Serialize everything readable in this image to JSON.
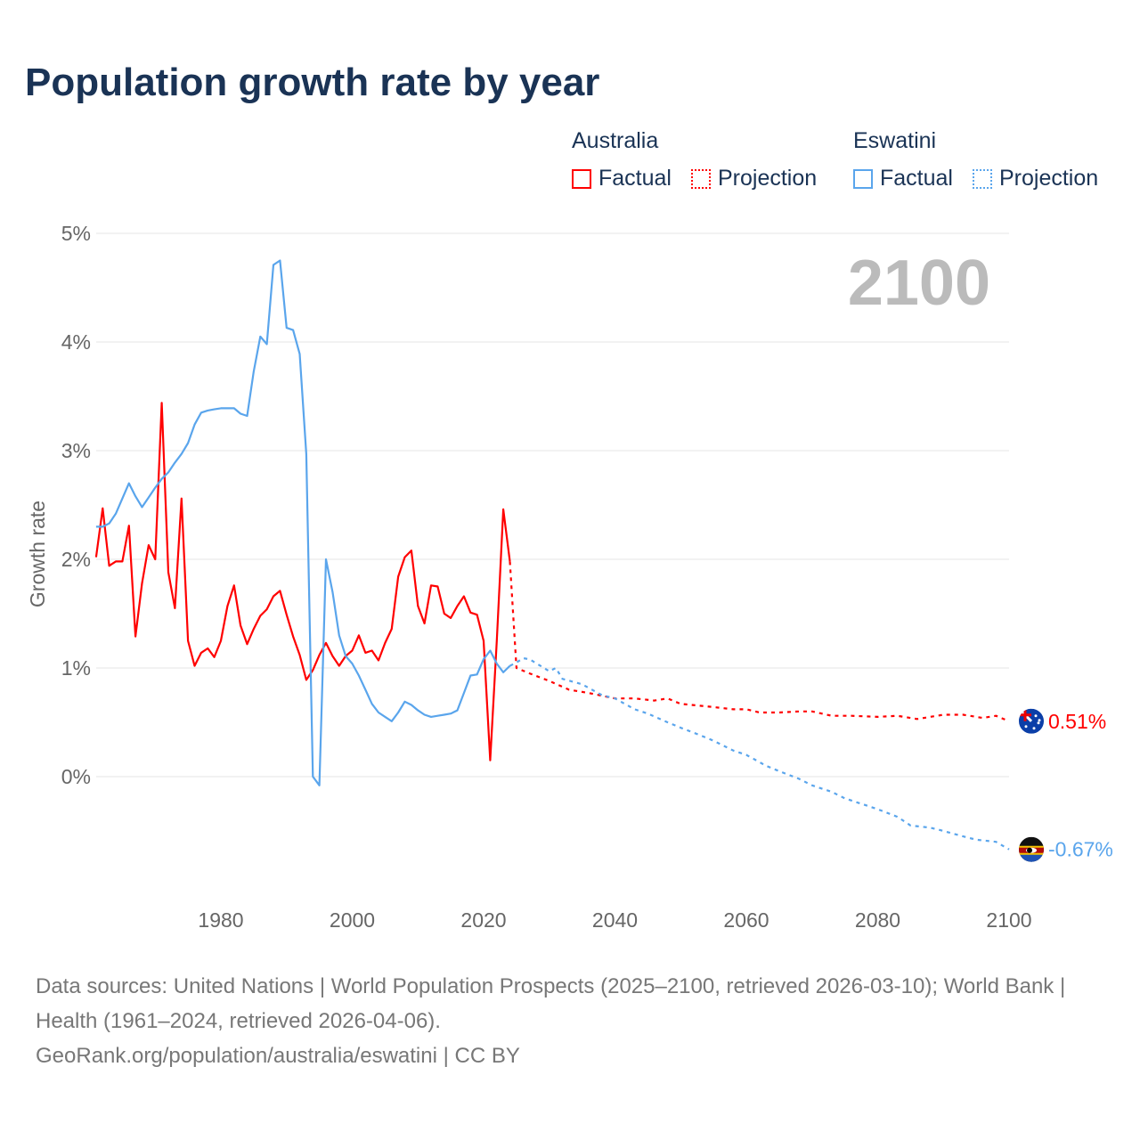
{
  "title": "Population growth rate by year",
  "legend": {
    "groups": [
      {
        "name": "Australia",
        "color": "#ff0000",
        "factual": "Factual",
        "projection": "Projection"
      },
      {
        "name": "Eswatini",
        "color": "#5aa5ec",
        "factual": "Factual",
        "projection": "Projection"
      }
    ]
  },
  "year_label": "2100",
  "source": {
    "line1": "Data sources: United Nations | World Population Prospects (2025–2100, retrieved 2026-03-10); World Bank | Health (1961–2024, retrieved 2026-04-06).",
    "line2": "GeoRank.org/population/australia/eswatini | CC BY"
  },
  "chart_data": {
    "type": "line",
    "title": "Population growth rate by year",
    "xlabel": "",
    "ylabel": "Growth rate",
    "xlim": [
      1961,
      2100
    ],
    "ylim": [
      -1,
      5
    ],
    "xticks": [
      "1980",
      "2000",
      "2020",
      "2040",
      "2060",
      "2080",
      "2100"
    ],
    "yticks": [
      "0%",
      "1%",
      "2%",
      "3%",
      "4%",
      "5%"
    ],
    "grid": true,
    "legend_position": "top-right",
    "series": [
      {
        "name": "Australia Factual",
        "color": "#ff0000",
        "start_year": 1961,
        "values": [
          2.02,
          2.47,
          1.94,
          1.98,
          1.98,
          2.31,
          1.29,
          1.78,
          2.13,
          2.0,
          3.44,
          1.88,
          1.55,
          2.56,
          1.25,
          1.02,
          1.14,
          1.18,
          1.1,
          1.25,
          1.57,
          1.76,
          1.39,
          1.22,
          1.36,
          1.48,
          1.54,
          1.66,
          1.71,
          1.49,
          1.29,
          1.12,
          0.89,
          0.98,
          1.12,
          1.23,
          1.11,
          1.02,
          1.11,
          1.16,
          1.3,
          1.14,
          1.16,
          1.07,
          1.23,
          1.36,
          1.84,
          2.02,
          2.08,
          1.57,
          1.41,
          1.76,
          1.75,
          1.5,
          1.46,
          1.57,
          1.66,
          1.51,
          1.49,
          1.25,
          0.15,
          1.25,
          2.46,
          1.98
        ]
      },
      {
        "name": "Australia Projection",
        "color": "#ff0000",
        "x": [
          2024,
          2025,
          2027,
          2030,
          2033,
          2036,
          2040,
          2043,
          2046,
          2048,
          2050,
          2055,
          2058,
          2060,
          2062,
          2065,
          2068,
          2070,
          2073,
          2076,
          2080,
          2083,
          2086,
          2090,
          2093,
          2096,
          2098,
          2100
        ],
        "values": [
          1.98,
          1.0,
          0.95,
          0.88,
          0.8,
          0.77,
          0.72,
          0.72,
          0.7,
          0.72,
          0.67,
          0.64,
          0.62,
          0.62,
          0.59,
          0.59,
          0.6,
          0.6,
          0.56,
          0.56,
          0.55,
          0.56,
          0.53,
          0.57,
          0.57,
          0.54,
          0.56,
          0.51
        ]
      },
      {
        "name": "Eswatini Factual",
        "color": "#5aa5ec",
        "start_year": 1961,
        "values": [
          2.3,
          2.3,
          2.33,
          2.42,
          2.56,
          2.7,
          2.58,
          2.48,
          2.57,
          2.66,
          2.74,
          2.8,
          2.89,
          2.97,
          3.07,
          3.24,
          3.35,
          3.37,
          3.38,
          3.39,
          3.39,
          3.39,
          3.34,
          3.32,
          3.73,
          4.05,
          3.98,
          4.71,
          4.75,
          4.13,
          4.11,
          3.89,
          2.97,
          0.0,
          -0.08,
          2.0,
          1.7,
          1.3,
          1.11,
          1.04,
          0.93,
          0.8,
          0.67,
          0.59,
          0.55,
          0.51,
          0.59,
          0.69,
          0.66,
          0.61,
          0.57,
          0.55,
          0.56,
          0.57,
          0.58,
          0.61,
          0.77,
          0.93,
          0.94,
          1.08,
          1.16,
          1.04,
          0.96,
          1.02
        ]
      },
      {
        "name": "Eswatini Projection",
        "color": "#5aa5ec",
        "x": [
          2024,
          2025,
          2026,
          2027,
          2030,
          2031,
          2032,
          2035,
          2038,
          2040,
          2043,
          2045,
          2048,
          2050,
          2053,
          2055,
          2058,
          2060,
          2063,
          2065,
          2068,
          2070,
          2073,
          2075,
          2078,
          2080,
          2083,
          2085,
          2088,
          2090,
          2093,
          2095,
          2098,
          2100
        ],
        "values": [
          1.02,
          1.05,
          1.09,
          1.08,
          0.97,
          1.0,
          0.9,
          0.85,
          0.75,
          0.72,
          0.62,
          0.58,
          0.5,
          0.45,
          0.38,
          0.33,
          0.24,
          0.2,
          0.1,
          0.05,
          -0.02,
          -0.08,
          -0.14,
          -0.2,
          -0.26,
          -0.3,
          -0.37,
          -0.45,
          -0.47,
          -0.5,
          -0.55,
          -0.58,
          -0.6,
          -0.67
        ]
      }
    ],
    "end_labels": [
      {
        "country": "Australia",
        "text": "0.51%",
        "value": 0.51,
        "color": "#ff0000"
      },
      {
        "country": "Eswatini",
        "text": "-0.67%",
        "value": -0.67,
        "color": "#5aa5ec"
      }
    ]
  }
}
